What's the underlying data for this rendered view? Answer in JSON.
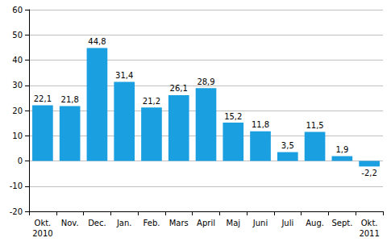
{
  "chart_data": {
    "type": "bar",
    "categories": [
      "Okt.\n2010",
      "Nov.",
      "Dec.",
      "Jan.",
      "Feb.",
      "Mars",
      "April",
      "Maj",
      "Juni",
      "Juli",
      "Aug.",
      "Sept.",
      "Okt.\n2011"
    ],
    "values": [
      22.1,
      21.8,
      44.8,
      31.4,
      21.2,
      26.1,
      28.9,
      15.2,
      11.8,
      3.5,
      11.5,
      1.9,
      -2.2
    ],
    "value_labels": [
      "22,1",
      "21,8",
      "44,8",
      "31,4",
      "21,2",
      "26,1",
      "28,9",
      "15,2",
      "11,8",
      "3,5",
      "11,5",
      "1,9",
      "-2,2"
    ],
    "color": "#1a9fe0",
    "ylim": [
      -20,
      60
    ],
    "yticks": [
      -20,
      -10,
      0,
      10,
      20,
      30,
      40,
      50,
      60
    ],
    "grid": true,
    "data_labels": true
  }
}
